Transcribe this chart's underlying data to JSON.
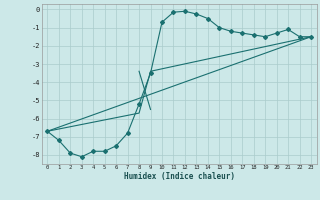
{
  "xlabel": "Humidex (Indice chaleur)",
  "bg_color": "#cce8e8",
  "grid_color": "#aacccc",
  "line_color": "#1a7070",
  "xlim": [
    -0.5,
    23.5
  ],
  "ylim": [
    -8.5,
    0.3
  ],
  "xticks": [
    0,
    1,
    2,
    3,
    4,
    5,
    6,
    7,
    8,
    9,
    10,
    11,
    12,
    13,
    14,
    15,
    16,
    17,
    18,
    19,
    20,
    21,
    22,
    23
  ],
  "yticks": [
    0,
    -1,
    -2,
    -3,
    -4,
    -5,
    -6,
    -7,
    -8
  ],
  "series1_x": [
    0,
    1,
    2,
    3,
    4,
    5,
    6,
    7,
    8,
    9,
    10,
    11,
    12,
    13,
    14,
    15,
    16,
    17,
    18,
    19,
    20,
    21,
    22,
    23
  ],
  "series1_y": [
    -6.7,
    -7.2,
    -7.9,
    -8.1,
    -7.8,
    -7.8,
    -7.5,
    -6.8,
    -5.2,
    -3.5,
    -0.7,
    -0.15,
    -0.1,
    -0.25,
    -0.5,
    -1.0,
    -1.2,
    -1.3,
    -1.4,
    -1.5,
    -1.3,
    -1.1,
    -1.5,
    -1.5
  ],
  "series2_x": [
    0,
    8,
    9,
    23
  ],
  "series2_y": [
    -6.7,
    -5.7,
    -3.4,
    -1.5
  ],
  "series3_x": [
    0,
    23
  ],
  "series3_y": [
    -6.7,
    -1.5
  ],
  "series4_x": [
    8,
    9
  ],
  "series4_y": [
    -3.4,
    -5.5
  ]
}
